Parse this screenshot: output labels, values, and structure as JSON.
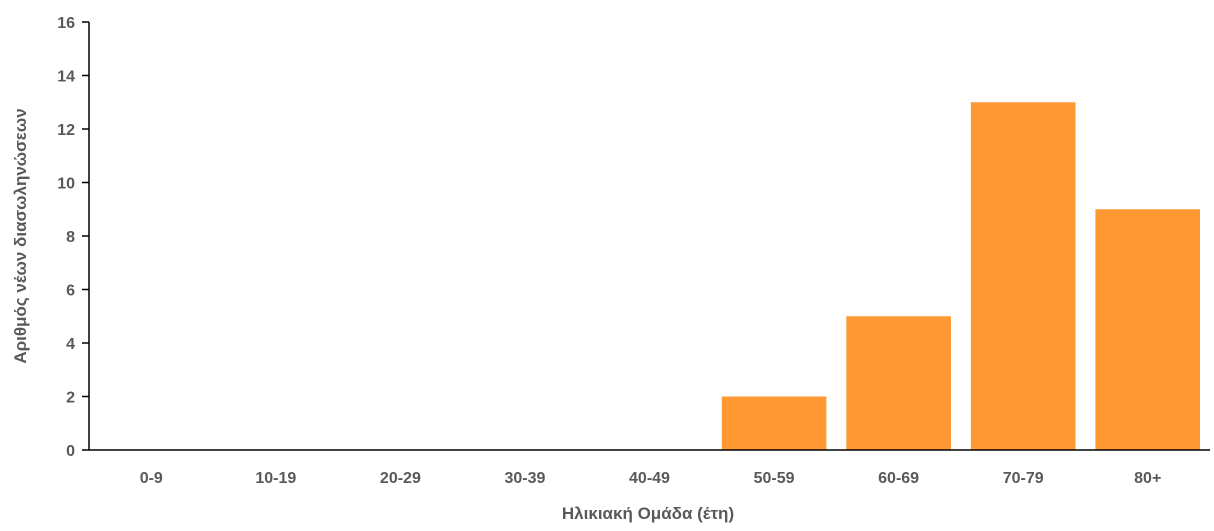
{
  "chart_data": {
    "type": "bar",
    "categories": [
      "0-9",
      "10-19",
      "20-29",
      "30-39",
      "40-49",
      "50-59",
      "60-69",
      "70-79",
      "80+"
    ],
    "values": [
      0,
      0,
      0,
      0,
      0,
      2,
      5,
      13,
      9
    ],
    "xlabel": "Ηλικιακή Ομάδα (έτη)",
    "ylabel": "Αριθμός νέων διασωληνώσεων",
    "ylim": [
      0,
      16
    ],
    "yticks": [
      0,
      2,
      4,
      6,
      8,
      10,
      12,
      14,
      16
    ],
    "grid": false,
    "bar_color": "#FF9933",
    "axis_color": "#000000",
    "text_color": "#595959"
  }
}
